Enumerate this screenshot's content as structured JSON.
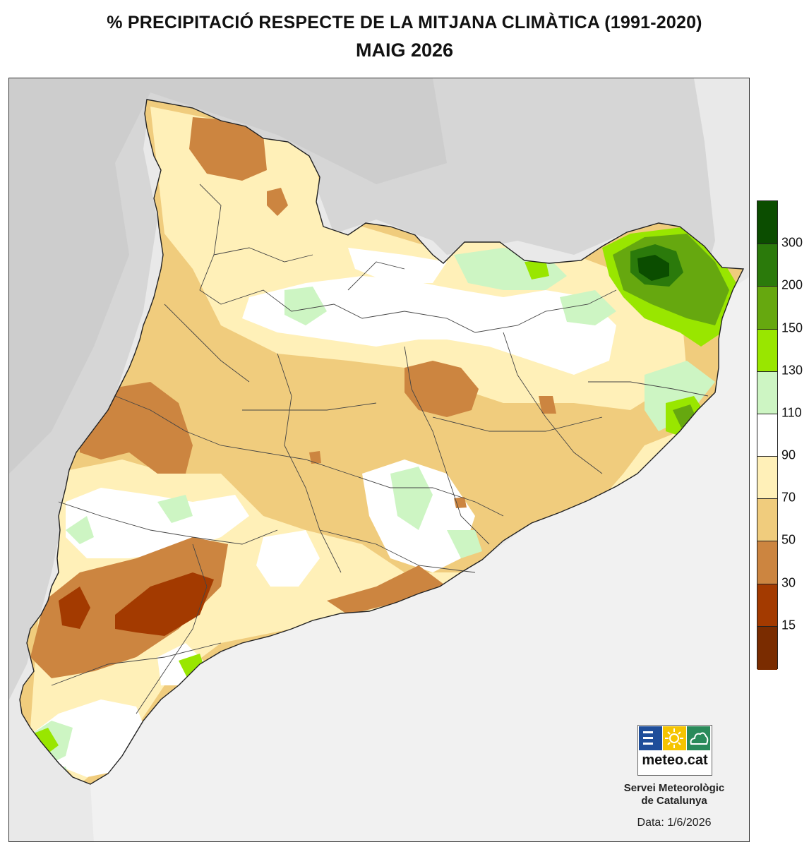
{
  "title": {
    "line1": "% PRECIPITACIÓ RESPECTE DE LA MITJANA CLIMÀTICA (1991-2020)",
    "line2": "MAIG 2026"
  },
  "legend": {
    "bins": [
      {
        "color": "#0b4d00"
      },
      {
        "color": "#2b7a0b"
      },
      {
        "color": "#66a80f"
      },
      {
        "color": "#99e600"
      },
      {
        "color": "#cdf5c3"
      },
      {
        "color": "#ffffff"
      },
      {
        "color": "#fff0b8"
      },
      {
        "color": "#f0cc7d"
      },
      {
        "color": "#cc8540"
      },
      {
        "color": "#a33a00"
      },
      {
        "color": "#7a2c00"
      }
    ],
    "labels": [
      "300",
      "200",
      "150",
      "130",
      "110",
      "90",
      "70",
      "50",
      "30",
      "15"
    ]
  },
  "logo": {
    "text": "meteo.cat",
    "colors": [
      "#1f4e9a",
      "#f5c400",
      "#2a8a5a"
    ]
  },
  "credit": {
    "line1": "Servei Meteorològic",
    "line2": "de Catalunya"
  },
  "date": "Data: 1/6/2026"
}
